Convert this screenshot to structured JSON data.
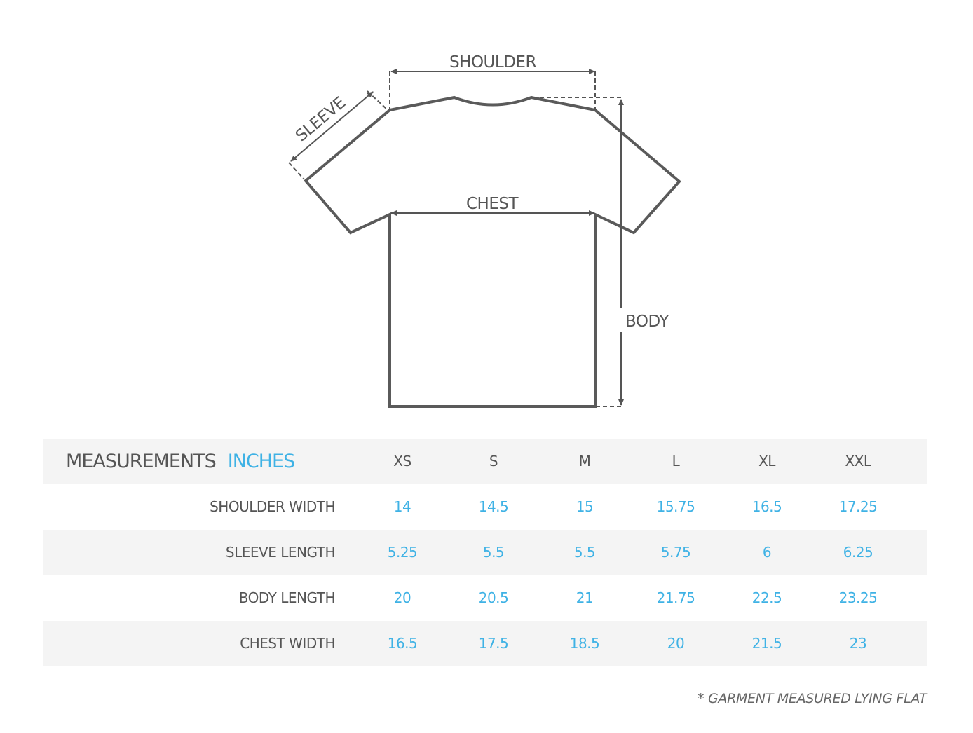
{
  "diagram": {
    "labels": {
      "shoulder": "SHOULDER",
      "sleeve": "SLEEVE",
      "chest": "CHEST",
      "body": "BODY"
    }
  },
  "table": {
    "title": "MEASUREMENTS",
    "unit": "INCHES",
    "sizes": [
      "XS",
      "S",
      "M",
      "L",
      "XL",
      "XXL"
    ],
    "rows": [
      {
        "label": "SHOULDER WIDTH",
        "values": [
          "14",
          "14.5",
          "15",
          "15.75",
          "16.5",
          "17.25"
        ]
      },
      {
        "label": "SLEEVE LENGTH",
        "values": [
          "5.25",
          "5.5",
          "5.5",
          "5.75",
          "6",
          "6.25"
        ]
      },
      {
        "label": "BODY LENGTH",
        "values": [
          "20",
          "20.5",
          "21",
          "21.75",
          "22.5",
          "23.25"
        ]
      },
      {
        "label": "CHEST WIDTH",
        "values": [
          "16.5",
          "17.5",
          "18.5",
          "20",
          "21.5",
          "23"
        ]
      }
    ]
  },
  "note": "* GARMENT MEASURED LYING FLAT",
  "colors": {
    "text": "#555555",
    "accent": "#3fb2e5",
    "row_alt": "#f4f4f4"
  }
}
